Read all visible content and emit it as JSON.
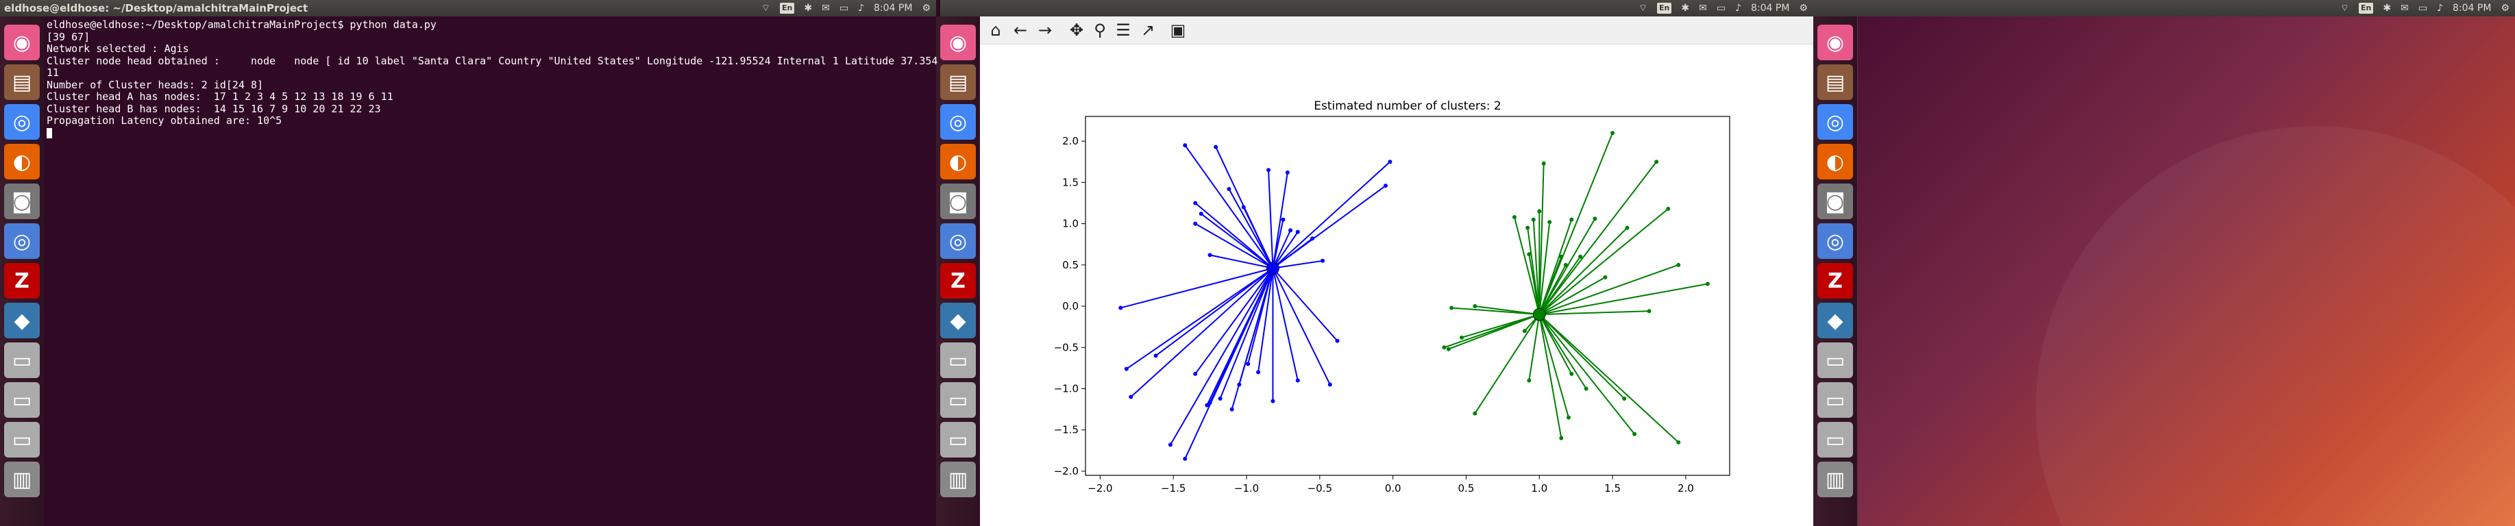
{
  "terminal": {
    "window_title": "eldhose@eldhose: ~/Desktop/amalchitraMainProject",
    "lines": [
      "eldhose@eldhose:~/Desktop/amalchitraMainProject$ python data.py",
      "[39 67]",
      "Network selected : Agis",
      "Cluster node head obtained :     node   node [ id 10 label \"Santa Clara\" Country \"United States\" Longitude -121.95524 Internal 1 Latitude 37.354",
      "11",
      "Number of Cluster heads: 2 id[24 8]",
      "Cluster head A has nodes:  17 1 2 3 4 5 12 13 18 19 6 11",
      "Cluster head B has nodes:  14 15 16 7 9 10 20 21 22 23",
      "Propagation Latency obtained are: 10^5"
    ]
  },
  "topbar": {
    "time_1": "8:04 PM",
    "time_2": "8:04 PM",
    "time_3": "8:04 PM",
    "keyboard": "En",
    "volume_icon": "volume-icon",
    "battery_icon": "battery-icon",
    "bluetooth_icon": "bluetooth-icon",
    "network_icon": "wifi-icon",
    "mail_icon": "mail-icon",
    "session_icon": "gear-icon"
  },
  "launcher": {
    "items": [
      {
        "icon": "dash-icon",
        "color": "#e8598a"
      },
      {
        "icon": "files-icon",
        "color": "#8a5a3c"
      },
      {
        "icon": "chrome-icon",
        "color": "#4285f4"
      },
      {
        "icon": "firefox-icon",
        "color": "#e66000"
      },
      {
        "icon": "camera-icon",
        "color": "#777777"
      },
      {
        "icon": "chromium-icon",
        "color": "#4a7ed8"
      },
      {
        "icon": "filezilla-icon",
        "color": "#bf0000"
      },
      {
        "icon": "python-icon",
        "color": "#3776ab"
      },
      {
        "icon": "drive-icon",
        "color": "#aaaaaa"
      },
      {
        "icon": "drive-icon-2",
        "color": "#aaaaaa"
      },
      {
        "icon": "drive-icon-3",
        "color": "#aaaaaa"
      },
      {
        "icon": "printer-icon",
        "color": "#888888"
      }
    ]
  },
  "figure_toolbar": {
    "buttons": [
      "home-icon",
      "back-icon",
      "forward-icon",
      "pan-icon",
      "zoom-icon",
      "configure-icon",
      "edit-curve-icon",
      "save-icon"
    ]
  },
  "chart_data": {
    "type": "scatter",
    "title": "Estimated number of clusters: 2",
    "xlabel": "",
    "ylabel": "",
    "xlim": [
      -2.1,
      2.3
    ],
    "ylim": [
      -2.05,
      2.3
    ],
    "xticks": [
      "−2.0",
      "−1.5",
      "−1.0",
      "−0.5",
      "0.0",
      "0.5",
      "1.0",
      "1.5",
      "2.0"
    ],
    "xtick_values": [
      -2.0,
      -1.5,
      -1.0,
      -0.5,
      0.0,
      0.5,
      1.0,
      1.5,
      2.0
    ],
    "yticks": [
      "−2.0",
      "−1.5",
      "−1.0",
      "−0.5",
      "0.0",
      "0.5",
      "1.0",
      "1.5",
      "2.0"
    ],
    "ytick_values": [
      -2.0,
      -1.5,
      -1.0,
      -0.5,
      0.0,
      0.5,
      1.0,
      1.5,
      2.0
    ],
    "series": [
      {
        "color": "#0000ff",
        "center": [
          -0.82,
          0.46
        ],
        "points": [
          [
            -1.42,
            1.95
          ],
          [
            -1.21,
            1.93
          ],
          [
            -0.85,
            1.65
          ],
          [
            -0.72,
            1.62
          ],
          [
            -0.02,
            1.75
          ],
          [
            -0.05,
            1.46
          ],
          [
            -1.35,
            1.25
          ],
          [
            -1.31,
            1.12
          ],
          [
            -1.35,
            1.0
          ],
          [
            -1.12,
            1.42
          ],
          [
            -1.02,
            1.2
          ],
          [
            -0.75,
            1.05
          ],
          [
            -0.7,
            0.92
          ],
          [
            -1.25,
            0.62
          ],
          [
            -1.86,
            -0.02
          ],
          [
            -1.82,
            -0.76
          ],
          [
            -1.62,
            -0.6
          ],
          [
            -1.79,
            -1.1
          ],
          [
            -1.52,
            -1.68
          ],
          [
            -1.42,
            -1.85
          ],
          [
            -1.35,
            -0.82
          ],
          [
            -1.27,
            -1.2
          ],
          [
            -1.25,
            -1.17
          ],
          [
            -1.18,
            -1.12
          ],
          [
            -1.1,
            -1.25
          ],
          [
            -1.05,
            -0.95
          ],
          [
            -0.99,
            -0.7
          ],
          [
            -0.92,
            -0.8
          ],
          [
            -0.82,
            -1.15
          ],
          [
            -0.65,
            -0.9
          ],
          [
            -0.43,
            -0.95
          ],
          [
            -0.38,
            -0.42
          ],
          [
            -0.48,
            0.55
          ],
          [
            -0.55,
            0.82
          ],
          [
            -0.65,
            0.9
          ]
        ]
      },
      {
        "color": "#008000",
        "center": [
          1.0,
          -0.1
        ],
        "points": [
          [
            1.5,
            2.1
          ],
          [
            1.8,
            1.75
          ],
          [
            1.88,
            1.18
          ],
          [
            1.95,
            0.5
          ],
          [
            2.15,
            0.27
          ],
          [
            1.75,
            -0.06
          ],
          [
            0.4,
            -0.02
          ],
          [
            0.56,
            0.0
          ],
          [
            0.38,
            -0.52
          ],
          [
            0.35,
            -0.5
          ],
          [
            0.47,
            -0.38
          ],
          [
            0.56,
            -1.3
          ],
          [
            0.9,
            -0.3
          ],
          [
            0.93,
            -0.9
          ],
          [
            0.93,
            0.63
          ],
          [
            0.92,
            0.95
          ],
          [
            0.96,
            1.05
          ],
          [
            1.03,
            1.73
          ],
          [
            1.0,
            1.15
          ],
          [
            1.07,
            1.02
          ],
          [
            1.15,
            0.6
          ],
          [
            1.18,
            0.5
          ],
          [
            1.22,
            1.05
          ],
          [
            1.28,
            0.6
          ],
          [
            1.38,
            1.06
          ],
          [
            1.6,
            0.95
          ],
          [
            1.45,
            0.35
          ],
          [
            1.22,
            -0.82
          ],
          [
            1.2,
            -1.35
          ],
          [
            1.15,
            -1.6
          ],
          [
            1.32,
            -1.0
          ],
          [
            1.58,
            -1.12
          ],
          [
            1.65,
            -1.55
          ],
          [
            1.95,
            -1.65
          ],
          [
            0.83,
            1.08
          ]
        ]
      }
    ]
  }
}
